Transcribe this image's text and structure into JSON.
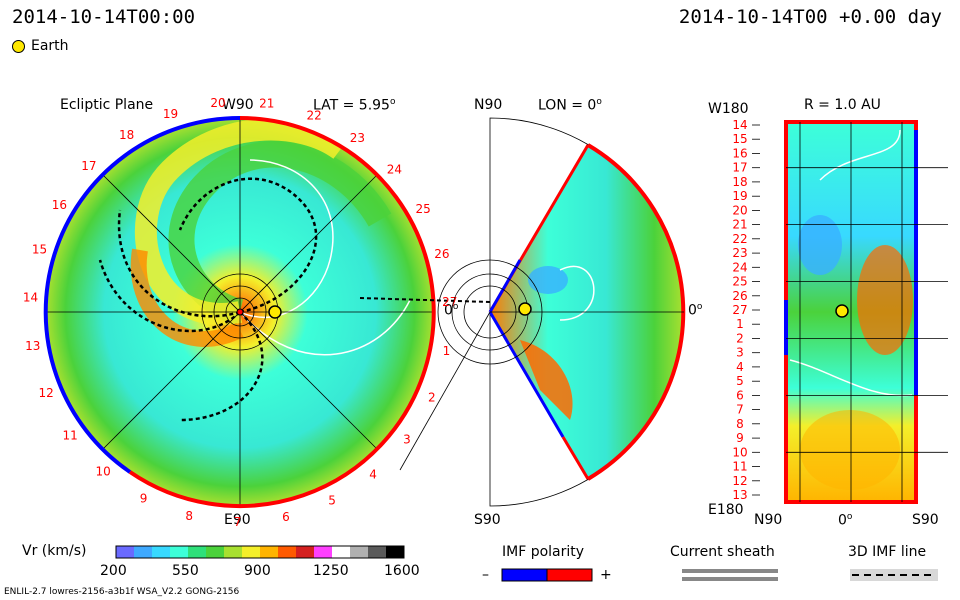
{
  "header": {
    "time_left": "2014-10-14T00:00",
    "time_right": "2014-10-14T00 +0.00 day"
  },
  "legend": {
    "earth_label": "Earth"
  },
  "ecliptic": {
    "title": "Ecliptic Plane",
    "top_label": "W90",
    "lat_label": "LAT = 5.95",
    "lat_unit": "o",
    "bottom_label": "E90",
    "right_label": "0",
    "right_unit": "o",
    "carrington_ticks": [
      "20",
      "21",
      "22",
      "23",
      "24",
      "25",
      "26",
      "27",
      "1",
      "2",
      "3",
      "4",
      "5",
      "6",
      "7",
      "8",
      "9",
      "10",
      "11",
      "12",
      "13",
      "14",
      "15",
      "16",
      "17",
      "18",
      "19"
    ]
  },
  "meridional": {
    "top_label": "N90",
    "lon_label": "LON = 0",
    "lon_unit": "o",
    "bottom_label": "S90",
    "right_label": "0",
    "right_unit": "o"
  },
  "lonlat": {
    "r_label": "R = 1.0 AU",
    "top_left": "W180",
    "bottom_left": "E180",
    "bottom_labels": [
      "N90",
      "0",
      "S90"
    ],
    "bottom_unit": "o",
    "row_labels": [
      "14",
      "15",
      "16",
      "17",
      "18",
      "19",
      "20",
      "21",
      "22",
      "23",
      "24",
      "25",
      "26",
      "27",
      "1",
      "2",
      "3",
      "4",
      "5",
      "6",
      "7",
      "8",
      "9",
      "10",
      "11",
      "12",
      "13"
    ]
  },
  "colorbar": {
    "label": "Vr (km/s)",
    "ticks": [
      "200",
      "550",
      "900",
      "1250",
      "1600"
    ]
  },
  "imf": {
    "label": "IMF polarity",
    "minus": "–",
    "plus": "+",
    "neg_color": "#0000ff",
    "pos_color": "#ff0000"
  },
  "current_sheath": {
    "label": "Current sheath"
  },
  "imf_line": {
    "label": "3D IMF line"
  },
  "footer": {
    "text": "ENLIL-2.7 lowres-2156-a3b1f WSA_V2.2 GONG-2156"
  },
  "colors": {
    "earth": "#ffe800",
    "scale": [
      "#6a6aff",
      "#3fa9ff",
      "#38d9ff",
      "#3dffd8",
      "#2fe07a",
      "#4bd23b",
      "#a8e030",
      "#f4ef2a",
      "#ffb400",
      "#ff5a00",
      "#d42020",
      "#ff40ff",
      "#ffffff",
      "#b0b0b0",
      "#5a5a5a",
      "#000000"
    ]
  }
}
